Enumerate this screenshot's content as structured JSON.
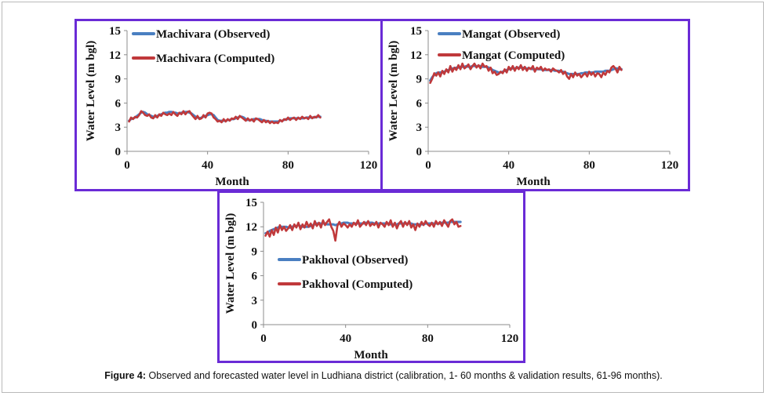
{
  "caption": {
    "prefix": "Figure 4:",
    "text": "Observed and forecasted water level in Ludhiana district (calibration, 1- 60 months & validation results, 61-96 months)."
  },
  "colors": {
    "observed": "#4a7fc1",
    "computed": "#c0393b",
    "border": "#6a2bd6"
  },
  "chart_data": [
    {
      "type": "line",
      "panel": "machivara",
      "xlabel": "Month",
      "ylabel": "Water Level (m bgl)",
      "xlim": [
        0,
        120
      ],
      "ylim": [
        0,
        15
      ],
      "xticks": [
        "0",
        "40",
        "80",
        "120"
      ],
      "yticks": [
        "0",
        "3",
        "6",
        "9",
        "12",
        "15"
      ],
      "legend": [
        "Machivara (Observed)",
        "Machivara (Computed)"
      ],
      "x": [
        1,
        2,
        3,
        4,
        5,
        6,
        7,
        8,
        9,
        10,
        11,
        12,
        13,
        14,
        15,
        16,
        17,
        18,
        19,
        20,
        21,
        22,
        23,
        24,
        25,
        26,
        27,
        28,
        29,
        30,
        31,
        32,
        33,
        34,
        35,
        36,
        37,
        38,
        39,
        40,
        41,
        42,
        43,
        44,
        45,
        46,
        47,
        48,
        49,
        50,
        51,
        52,
        53,
        54,
        55,
        56,
        57,
        58,
        59,
        60,
        61,
        62,
        63,
        64,
        65,
        66,
        67,
        68,
        69,
        70,
        71,
        72,
        73,
        74,
        75,
        76,
        77,
        78,
        79,
        80,
        81,
        82,
        83,
        84,
        85,
        86,
        87,
        88,
        89,
        90,
        91,
        92,
        93,
        94,
        95,
        96
      ],
      "series": [
        {
          "name": "Machivara (Observed)",
          "values": [
            3.8,
            4.0,
            4.1,
            4.2,
            4.4,
            4.6,
            4.8,
            4.9,
            4.8,
            4.6,
            4.5,
            4.4,
            4.3,
            4.3,
            4.4,
            4.5,
            4.6,
            4.7,
            4.8,
            4.8,
            4.9,
            4.9,
            4.8,
            4.8,
            4.7,
            4.7,
            4.8,
            4.8,
            4.9,
            4.9,
            4.8,
            4.7,
            4.5,
            4.3,
            4.2,
            4.1,
            4.2,
            4.3,
            4.4,
            4.5,
            4.6,
            4.6,
            4.5,
            4.2,
            3.9,
            3.8,
            3.8,
            3.8,
            3.8,
            3.9,
            3.9,
            4.0,
            4.0,
            4.1,
            4.2,
            4.3,
            4.3,
            4.2,
            4.0,
            3.9,
            3.9,
            3.9,
            4.0,
            4.0,
            4.0,
            4.0,
            3.9,
            3.8,
            3.8,
            3.7,
            3.7,
            3.7,
            3.7,
            3.7,
            3.7,
            3.8,
            3.8,
            3.9,
            4.0,
            4.0,
            4.1,
            4.1,
            4.1,
            4.1,
            4.1,
            4.1,
            4.1,
            4.1,
            4.2,
            4.2,
            4.2,
            4.2,
            4.2,
            4.3,
            4.3,
            4.3
          ]
        },
        {
          "name": "Machivara (Computed)",
          "values": [
            3.7,
            4.2,
            4.0,
            4.3,
            4.2,
            4.5,
            5.0,
            4.8,
            4.5,
            4.4,
            4.6,
            4.2,
            4.1,
            4.5,
            4.2,
            4.6,
            4.4,
            4.8,
            4.6,
            4.5,
            4.7,
            4.5,
            4.9,
            4.6,
            4.4,
            4.8,
            4.6,
            5.0,
            4.6,
            4.9,
            5.0,
            4.6,
            4.3,
            4.0,
            4.4,
            4.0,
            4.1,
            4.5,
            4.2,
            4.7,
            4.8,
            4.7,
            4.2,
            4.0,
            3.7,
            3.8,
            3.6,
            4.0,
            3.7,
            4.0,
            3.8,
            4.1,
            4.0,
            4.3,
            4.0,
            4.4,
            4.2,
            4.0,
            3.8,
            4.1,
            3.8,
            4.0,
            3.7,
            4.1,
            4.0,
            3.8,
            3.6,
            3.9,
            3.6,
            3.8,
            3.5,
            3.7,
            3.5,
            3.6,
            3.5,
            3.9,
            3.7,
            4.0,
            3.9,
            4.2,
            3.9,
            4.1,
            4.2,
            3.9,
            4.2,
            4.0,
            4.3,
            4.1,
            4.2,
            4.0,
            4.4,
            4.1,
            4.3,
            4.2,
            4.5,
            4.2
          ]
        }
      ]
    },
    {
      "type": "line",
      "panel": "mangat",
      "xlabel": "Month",
      "ylabel": "Water Level (m bgl)",
      "xlim": [
        0,
        120
      ],
      "ylim": [
        0,
        15
      ],
      "xticks": [
        "0",
        "40",
        "80",
        "120"
      ],
      "yticks": [
        "0",
        "3",
        "6",
        "9",
        "12",
        "15"
      ],
      "legend": [
        "Mangat (Observed)",
        "Mangat  (Computed)"
      ],
      "x": [
        1,
        2,
        3,
        4,
        5,
        6,
        7,
        8,
        9,
        10,
        11,
        12,
        13,
        14,
        15,
        16,
        17,
        18,
        19,
        20,
        21,
        22,
        23,
        24,
        25,
        26,
        27,
        28,
        29,
        30,
        31,
        32,
        33,
        34,
        35,
        36,
        37,
        38,
        39,
        40,
        41,
        42,
        43,
        44,
        45,
        46,
        47,
        48,
        49,
        50,
        51,
        52,
        53,
        54,
        55,
        56,
        57,
        58,
        59,
        60,
        61,
        62,
        63,
        64,
        65,
        66,
        67,
        68,
        69,
        70,
        71,
        72,
        73,
        74,
        75,
        76,
        77,
        78,
        79,
        80,
        81,
        82,
        83,
        84,
        85,
        86,
        87,
        88,
        89,
        90,
        91,
        92,
        93,
        94,
        95,
        96
      ],
      "series": [
        {
          "name": "Mangat (Observed)",
          "values": [
            8.8,
            9.2,
            9.5,
            9.7,
            9.8,
            9.8,
            9.8,
            9.9,
            10.0,
            10.1,
            10.2,
            10.3,
            10.3,
            10.4,
            10.4,
            10.5,
            10.5,
            10.5,
            10.6,
            10.5,
            10.5,
            10.6,
            10.6,
            10.6,
            10.6,
            10.6,
            10.5,
            10.5,
            10.5,
            10.4,
            10.3,
            10.1,
            10.0,
            9.9,
            9.8,
            9.8,
            9.9,
            10.0,
            10.1,
            10.2,
            10.3,
            10.3,
            10.3,
            10.4,
            10.4,
            10.4,
            10.4,
            10.3,
            10.3,
            10.3,
            10.3,
            10.2,
            10.2,
            10.2,
            10.2,
            10.2,
            10.1,
            10.1,
            10.1,
            10.1,
            10.1,
            10.1,
            10.0,
            10.0,
            10.0,
            9.9,
            9.9,
            9.8,
            9.7,
            9.6,
            9.6,
            9.6,
            9.6,
            9.6,
            9.6,
            9.7,
            9.7,
            9.8,
            9.8,
            9.8,
            9.8,
            9.8,
            9.9,
            9.9,
            9.9,
            9.9,
            9.9,
            10.0,
            10.0,
            10.0,
            10.1,
            10.2,
            10.3,
            10.3,
            10.2,
            10.2
          ]
        },
        {
          "name": "Mangat  (Computed)",
          "values": [
            8.5,
            9.0,
            9.7,
            9.4,
            9.8,
            9.3,
            10.0,
            9.6,
            10.2,
            9.8,
            10.6,
            9.9,
            10.4,
            10.1,
            10.7,
            10.2,
            10.9,
            10.3,
            10.5,
            10.8,
            10.2,
            10.6,
            10.9,
            10.4,
            10.7,
            10.3,
            10.9,
            10.5,
            10.6,
            10.0,
            10.4,
            9.7,
            9.9,
            9.5,
            9.6,
            9.9,
            9.7,
            10.2,
            9.8,
            10.5,
            10.1,
            10.6,
            10.0,
            10.5,
            10.2,
            10.7,
            10.1,
            10.5,
            10.0,
            10.4,
            10.2,
            10.6,
            9.9,
            10.4,
            10.2,
            10.5,
            10.0,
            10.3,
            10.1,
            10.2,
            9.9,
            10.3,
            10.1,
            10.0,
            9.8,
            10.1,
            9.6,
            9.9,
            9.3,
            9.0,
            9.6,
            9.2,
            9.8,
            9.4,
            9.6,
            9.2,
            9.5,
            9.7,
            9.3,
            9.9,
            9.5,
            9.8,
            9.3,
            9.7,
            9.6,
            9.2,
            9.8,
            9.5,
            10.0,
            9.8,
            10.4,
            10.6,
            10.3,
            9.8,
            10.5,
            10.1
          ]
        }
      ]
    },
    {
      "type": "line",
      "panel": "pakhoval",
      "xlabel": "Month",
      "ylabel": "Water Level (m bgl)",
      "xlim": [
        0,
        120
      ],
      "ylim": [
        0,
        15
      ],
      "xticks": [
        "0",
        "40",
        "80",
        "120"
      ],
      "yticks": [
        "0",
        "3",
        "6",
        "9",
        "12",
        "15"
      ],
      "legend": [
        "Pakhoval  (Observed)",
        "Pakhoval  (Computed)"
      ],
      "x": [
        1,
        2,
        3,
        4,
        5,
        6,
        7,
        8,
        9,
        10,
        11,
        12,
        13,
        14,
        15,
        16,
        17,
        18,
        19,
        20,
        21,
        22,
        23,
        24,
        25,
        26,
        27,
        28,
        29,
        30,
        31,
        32,
        33,
        34,
        35,
        36,
        37,
        38,
        39,
        40,
        41,
        42,
        43,
        44,
        45,
        46,
        47,
        48,
        49,
        50,
        51,
        52,
        53,
        54,
        55,
        56,
        57,
        58,
        59,
        60,
        61,
        62,
        63,
        64,
        65,
        66,
        67,
        68,
        69,
        70,
        71,
        72,
        73,
        74,
        75,
        76,
        77,
        78,
        79,
        80,
        81,
        82,
        83,
        84,
        85,
        86,
        87,
        88,
        89,
        90,
        91,
        92,
        93,
        94,
        95,
        96
      ],
      "series": [
        {
          "name": "Pakhoval  (Observed)",
          "values": [
            11.2,
            11.3,
            11.5,
            11.6,
            11.7,
            11.8,
            11.9,
            12.0,
            12.0,
            12.0,
            12.0,
            11.9,
            11.9,
            12.0,
            12.1,
            12.1,
            12.2,
            12.1,
            12.0,
            12.0,
            12.0,
            12.0,
            12.1,
            12.2,
            12.3,
            12.4,
            12.4,
            12.4,
            12.4,
            12.4,
            12.3,
            12.3,
            12.3,
            12.3,
            12.2,
            12.3,
            12.4,
            12.4,
            12.5,
            12.5,
            12.5,
            12.4,
            12.4,
            12.4,
            12.4,
            12.4,
            12.4,
            12.4,
            12.4,
            12.5,
            12.5,
            12.5,
            12.5,
            12.4,
            12.4,
            12.4,
            12.4,
            12.4,
            12.4,
            12.4,
            12.4,
            12.3,
            12.3,
            12.3,
            12.3,
            12.4,
            12.4,
            12.4,
            12.4,
            12.4,
            12.4,
            12.4,
            12.3,
            12.3,
            12.3,
            12.3,
            12.3,
            12.3,
            12.4,
            12.4,
            12.4,
            12.4,
            12.4,
            12.4,
            12.4,
            12.4,
            12.5,
            12.5,
            12.5,
            12.5,
            12.6,
            12.6,
            12.6,
            12.6,
            12.6,
            12.6
          ]
        },
        {
          "name": "Pakhoval  (Computed)",
          "values": [
            10.9,
            11.4,
            10.8,
            11.6,
            11.0,
            11.9,
            11.3,
            12.2,
            11.6,
            12.0,
            11.5,
            11.8,
            12.2,
            11.6,
            12.3,
            11.9,
            12.5,
            11.7,
            12.3,
            11.9,
            12.6,
            12.0,
            12.4,
            11.8,
            12.7,
            12.1,
            12.5,
            11.9,
            12.8,
            12.2,
            12.6,
            12.9,
            12.0,
            11.5,
            10.3,
            12.1,
            12.6,
            12.0,
            12.4,
            12.2,
            11.9,
            12.3,
            12.0,
            12.5,
            12.2,
            12.8,
            12.0,
            12.3,
            12.6,
            12.2,
            12.7,
            12.1,
            12.4,
            12.2,
            12.6,
            11.9,
            12.5,
            12.3,
            12.0,
            12.6,
            12.2,
            12.8,
            12.0,
            12.5,
            11.8,
            12.4,
            12.7,
            12.0,
            12.6,
            12.2,
            12.7,
            11.9,
            12.3,
            11.6,
            12.4,
            12.0,
            12.6,
            12.2,
            12.7,
            12.3,
            12.1,
            12.5,
            12.0,
            12.7,
            12.3,
            12.6,
            12.1,
            12.8,
            12.4,
            12.0,
            12.7,
            12.9,
            12.3,
            12.6,
            12.0,
            12.1
          ]
        }
      ]
    }
  ]
}
